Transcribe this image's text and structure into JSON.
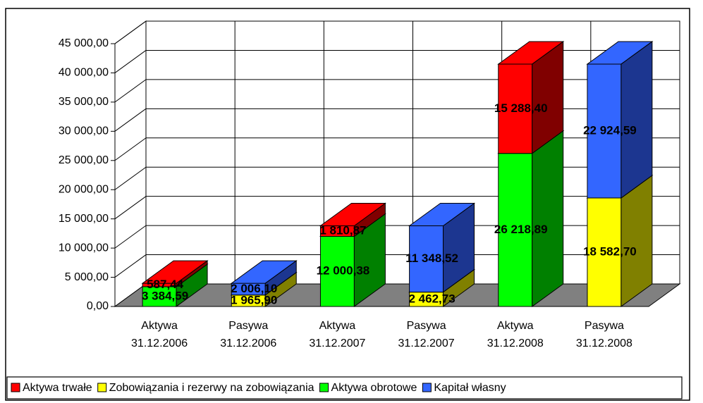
{
  "chart_data": {
    "type": "bar3d-stacked",
    "categories": [
      [
        "Aktywa",
        "31.12.2006"
      ],
      [
        "Pasywa",
        "31.12.2006"
      ],
      [
        "Aktywa",
        "31.12.2007"
      ],
      [
        "Pasywa",
        "31.12.2007"
      ],
      [
        "Aktywa",
        "31.12.2008"
      ],
      [
        "Pasywa",
        "31.12.2008"
      ]
    ],
    "series": [
      {
        "name": "Aktywa trwałe",
        "color": "#ff0000",
        "side_color": "#800000",
        "values": [
          587.44,
          null,
          1810.87,
          null,
          15288.4,
          null
        ],
        "value_labels": [
          "587,44",
          null,
          "1 810,87",
          null,
          "15 288,40",
          null
        ]
      },
      {
        "name": "Zobowiązania i rezerwy na zobowiązania",
        "color": "#ffff00",
        "side_color": "#808000",
        "values": [
          null,
          1965.9,
          null,
          2462.73,
          null,
          18582.7
        ],
        "value_labels": [
          null,
          "1 965,90",
          null,
          "2 462,73",
          null,
          "18 582,70"
        ]
      },
      {
        "name": "Aktywa obrotowe",
        "color": "#00ff00",
        "side_color": "#008000",
        "values": [
          3384.59,
          null,
          12000.38,
          null,
          26218.89,
          null
        ],
        "value_labels": [
          "3 384,59",
          null,
          "12 000,38",
          null,
          "26 218,89",
          null
        ]
      },
      {
        "name": "Kapitał własny",
        "color": "#3366ff",
        "side_color": "#1c3690",
        "values": [
          null,
          2006.1,
          null,
          11348.52,
          null,
          22924.59
        ],
        "value_labels": [
          null,
          "2 006,10",
          null,
          "11 348,52",
          null,
          "22 924,59"
        ]
      }
    ],
    "ylim": [
      0,
      45000
    ],
    "yticks": [
      {
        "value": 0,
        "label": "0,00"
      },
      {
        "value": 5000,
        "label": "5 000,00"
      },
      {
        "value": 10000,
        "label": "10 000,00"
      },
      {
        "value": 15000,
        "label": "15 000,00"
      },
      {
        "value": 20000,
        "label": "20 000,00"
      },
      {
        "value": 25000,
        "label": "25 000,00"
      },
      {
        "value": 30000,
        "label": "30 000,00"
      },
      {
        "value": 35000,
        "label": "35 000,00"
      },
      {
        "value": 40000,
        "label": "40 000,00"
      },
      {
        "value": 45000,
        "label": "45 000,00"
      }
    ],
    "grid": true,
    "legend": "bottom",
    "floor_color": "#808080"
  }
}
